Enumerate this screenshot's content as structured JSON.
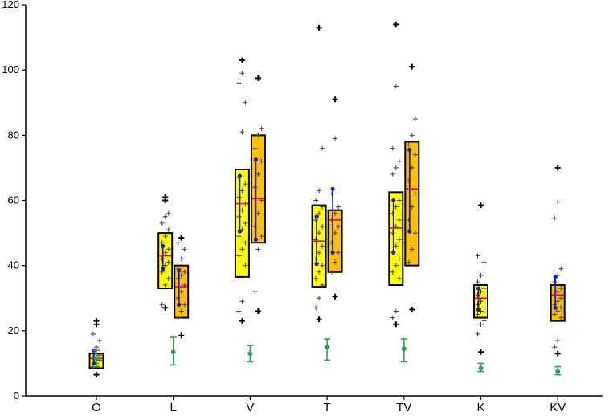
{
  "chart_data": {
    "type": "box",
    "ylim": [
      0,
      120
    ],
    "yticks": [
      0,
      20,
      40,
      60,
      80,
      100,
      120
    ],
    "categories": [
      "O",
      "L",
      "V",
      "T",
      "TV",
      "K",
      "KV"
    ],
    "grid": false,
    "colors": {
      "box_light": "#ffff00",
      "box_dark": "#ffc000",
      "median": "#e0007a",
      "ci": "#1a1ad8",
      "points": "#404040",
      "outliers": "#000000",
      "error_bar": "#2e9e5a"
    },
    "boxes": [
      {
        "category": "O",
        "variant": "light",
        "q1": 8.5,
        "q3": 13.0,
        "median": 11.5,
        "ci": [
          10.0,
          14.0
        ],
        "outliers": [
          6.5,
          22.0,
          23.0
        ],
        "points": [
          9,
          10,
          11,
          11.5,
          12,
          12.5,
          13,
          15,
          17,
          19
        ]
      },
      {
        "category": "L",
        "variant": "light",
        "q1": 33.0,
        "q3": 50.0,
        "median": 43.0,
        "ci": [
          39.0,
          46.0
        ],
        "outliers": [
          27.0,
          60.0,
          61.0
        ],
        "points": [
          28,
          34,
          36,
          38,
          40,
          41,
          42,
          44,
          45,
          47,
          49,
          51,
          53,
          55,
          56
        ]
      },
      {
        "category": "L",
        "variant": "dark",
        "q1": 24.0,
        "q3": 40.0,
        "median": 33.5,
        "ci": [
          28.0,
          38.5
        ],
        "outliers": [
          18.5,
          48.5
        ],
        "points": [
          24,
          26,
          28,
          30,
          32,
          34,
          36,
          37,
          38,
          39,
          42,
          45,
          47
        ]
      },
      {
        "category": "V",
        "variant": "light",
        "q1": 36.5,
        "q3": 69.5,
        "median": 59.0,
        "ci": [
          50.5,
          67.5
        ],
        "outliers": [
          23.0,
          103.0
        ],
        "points": [
          26,
          29,
          40,
          43,
          45,
          47,
          49,
          51,
          53,
          55,
          57,
          59,
          61,
          63,
          65,
          67,
          81,
          90,
          96,
          99
        ]
      },
      {
        "category": "V",
        "variant": "dark",
        "q1": 47.0,
        "q3": 80.0,
        "median": 60.5,
        "ci": [
          48.0,
          72.5
        ],
        "outliers": [
          26.0,
          97.5
        ],
        "points": [
          32,
          45,
          49,
          52,
          56,
          60,
          64,
          68,
          72,
          76,
          80,
          82
        ]
      },
      {
        "category": "T",
        "variant": "light",
        "q1": 33.5,
        "q3": 58.5,
        "median": 47.5,
        "ci": [
          40.5,
          55.0
        ],
        "outliers": [
          23.5,
          113.0
        ],
        "points": [
          27,
          30,
          34,
          36,
          38,
          40,
          42,
          44,
          46,
          48,
          50,
          52,
          54,
          56,
          58,
          60,
          63,
          76
        ]
      },
      {
        "category": "T",
        "variant": "dark",
        "q1": 38.0,
        "q3": 57.0,
        "median": 54.0,
        "ci": [
          44.0,
          63.5
        ],
        "outliers": [
          30.5,
          91.0
        ],
        "points": [
          38,
          41,
          44,
          47,
          50,
          52,
          54,
          56,
          58,
          62,
          79
        ]
      },
      {
        "category": "TV",
        "variant": "light",
        "q1": 34.0,
        "q3": 62.5,
        "median": 51.5,
        "ci": [
          44.0,
          60.0
        ],
        "outliers": [
          22.0,
          114.0
        ],
        "points": [
          24,
          26,
          36,
          38,
          40,
          42,
          44,
          46,
          48,
          50,
          52,
          54,
          56,
          58,
          60,
          68,
          70,
          72,
          76,
          95
        ]
      },
      {
        "category": "TV",
        "variant": "dark",
        "q1": 40.0,
        "q3": 78.0,
        "median": 63.5,
        "ci": [
          50.5,
          75.5
        ],
        "outliers": [
          26.5,
          101.0
        ],
        "points": [
          41,
          45,
          50,
          54,
          58,
          62,
          66,
          70,
          74,
          77,
          80,
          85
        ]
      },
      {
        "category": "K",
        "variant": "light",
        "q1": 24.0,
        "q3": 34.0,
        "median": 30.0,
        "ci": [
          26.5,
          33.0
        ],
        "outliers": [
          13.5,
          58.5
        ],
        "points": [
          19,
          22,
          23,
          25,
          26,
          27,
          28,
          29,
          30,
          31,
          32,
          33,
          35,
          37,
          41,
          43
        ]
      },
      {
        "category": "KV",
        "variant": "dark",
        "q1": 23.0,
        "q3": 34.0,
        "median": 31.0,
        "ci": [
          27.0,
          36.5
        ],
        "outliers": [
          13.0,
          70.0
        ],
        "points": [
          15,
          17,
          24,
          25,
          26,
          27,
          28,
          29,
          30,
          31,
          32,
          33,
          35,
          37,
          39,
          54.5,
          59.5
        ]
      }
    ],
    "error_bars": [
      {
        "category": "O",
        "mean": 11.5,
        "low": 9.0,
        "high": 14.0
      },
      {
        "category": "L",
        "mean": 13.5,
        "low": 9.5,
        "high": 18.0
      },
      {
        "category": "V",
        "mean": 13.0,
        "low": 10.5,
        "high": 15.5
      },
      {
        "category": "T",
        "mean": 15.0,
        "low": 11.0,
        "high": 17.5
      },
      {
        "category": "TV",
        "mean": 14.5,
        "low": 10.5,
        "high": 17.5
      },
      {
        "category": "K",
        "mean": 8.5,
        "low": 7.5,
        "high": 10.0
      },
      {
        "category": "KV",
        "mean": 7.5,
        "low": 6.5,
        "high": 9.0
      }
    ]
  }
}
